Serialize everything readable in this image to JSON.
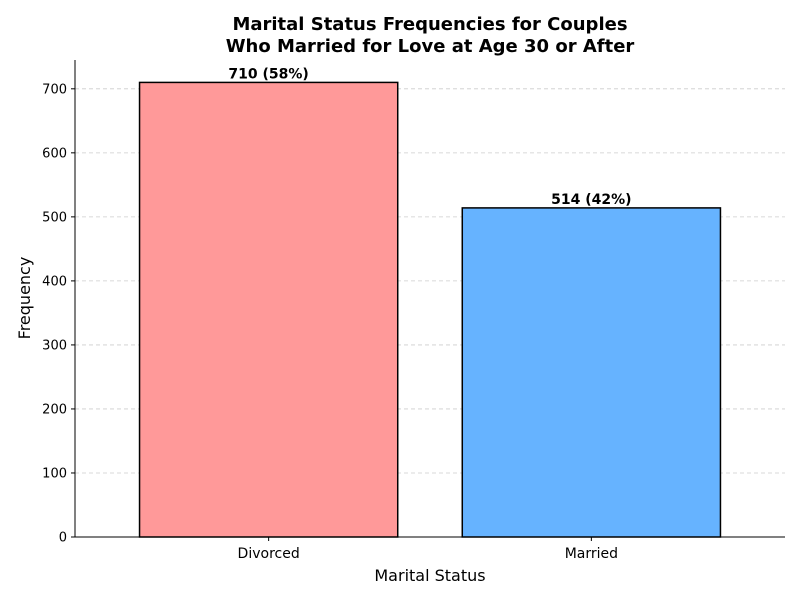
{
  "chart_data": {
    "type": "bar",
    "title_lines": [
      "Marital Status Frequencies for Couples",
      "Who Married for Love at Age 30 or After"
    ],
    "xlabel": "Marital Status",
    "ylabel": "Frequency",
    "categories": [
      "Divorced",
      "Married"
    ],
    "values": [
      710,
      514
    ],
    "data_labels": [
      "710 (58%)",
      "514 (42%)"
    ],
    "colors": [
      "#ff9999",
      "#66b3ff"
    ],
    "ylim": [
      0,
      745
    ],
    "yticks": [
      0,
      100,
      200,
      300,
      400,
      500,
      600,
      700
    ],
    "grid": true,
    "legend": "none"
  }
}
